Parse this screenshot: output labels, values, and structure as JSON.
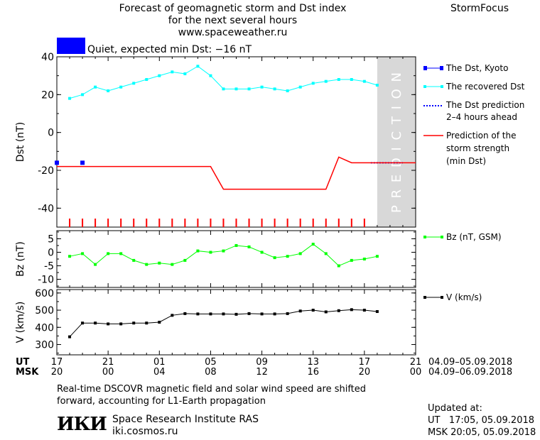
{
  "header": {
    "title_line1": "Forecast of geomagnetic storm and Dst index",
    "title_line2": "for the next several hours",
    "website": "www.spaceweather.ru",
    "brand": "StormFocus",
    "status_text": "Quiet, expected min Dst: −16 nT",
    "status_color": "#0000ff"
  },
  "prediction_label": "PREDICTION",
  "legend": {
    "dst_kyoto": "The Dst, Kyoto",
    "recovered_line1": "The recovered Dst",
    "prediction_line1": "The Dst prediction",
    "prediction_line2": "2–4 hours ahead",
    "storm_line1": "Prediction of the",
    "storm_line2": "storm strength",
    "storm_line3": "(min Dst)",
    "bz": "Bz (nT, GSM)",
    "v": "V (km/s)"
  },
  "axis": {
    "ut_label": "UT",
    "msk_label": "MSK",
    "ut_ticks": [
      "17",
      "21",
      "01",
      "05",
      "09",
      "13",
      "17",
      "21"
    ],
    "msk_ticks": [
      "20",
      "00",
      "04",
      "08",
      "12",
      "16",
      "20",
      "00"
    ],
    "ut_range": "04.09–05.09.2018",
    "msk_range": "04.09–06.09.2018"
  },
  "footer": {
    "note_line1": "Real-time DSCOVR magnetic field and solar wind speed are shifted",
    "note_line2": "forward, accounting for L1-Earth propagation",
    "institute": "Space Research Institute RAS",
    "institute_url": "iki.cosmos.ru",
    "logo": "ИКИ",
    "updated_label": "Updated at:",
    "updated_ut": "UT   17:05, 05.09.2018",
    "updated_msk": "MSK 20:05, 05.09.2018"
  },
  "colors": {
    "dst_kyoto": "#0000ff",
    "recovered": "#00ffff",
    "prediction": "#0000ff",
    "storm": "#ff0000",
    "bz": "#00ff00",
    "v": "#000000",
    "prediction_band": "#d8d8d8"
  },
  "chart_data": [
    {
      "type": "line",
      "ylabel": "Dst (nT)",
      "xlim": [
        0,
        28
      ],
      "ylim": [
        -50,
        40
      ],
      "yticks": [
        40,
        20,
        0,
        -20,
        -40
      ],
      "prediction_band": [
        25,
        28
      ],
      "series": [
        {
          "name": "The Dst, Kyoto",
          "x": [
            0,
            2
          ],
          "y": [
            -16,
            -16
          ]
        },
        {
          "name": "The recovered Dst",
          "x": [
            1,
            2,
            3,
            4,
            5,
            6,
            7,
            8,
            9,
            10,
            11,
            12,
            13,
            14,
            15,
            16,
            17,
            18,
            19,
            20,
            21,
            22,
            23,
            24,
            25
          ],
          "y": [
            18,
            20,
            24,
            22,
            24,
            26,
            28,
            30,
            32,
            31,
            35,
            30,
            23,
            23,
            23,
            24,
            23,
            22,
            24,
            26,
            27,
            28,
            28,
            27,
            25
          ]
        },
        {
          "name": "The Dst prediction 2–4 hours ahead",
          "x": [
            24.5,
            27
          ],
          "y": [
            -16,
            -16
          ]
        },
        {
          "name": "Prediction of the storm strength (min Dst)",
          "x": [
            0,
            12,
            13,
            21,
            22,
            23,
            28
          ],
          "y": [
            -18,
            -18,
            -30,
            -30,
            -13,
            -16,
            -16
          ]
        }
      ],
      "tick_marks_x": [
        1,
        2,
        3,
        4,
        5,
        6,
        7,
        8,
        9,
        10,
        11,
        12,
        13,
        14,
        15,
        16,
        17,
        18,
        19,
        20,
        21,
        22,
        23,
        24
      ]
    },
    {
      "type": "line",
      "ylabel": "Bz (nT)",
      "xlim": [
        0,
        28
      ],
      "ylim": [
        -13,
        8
      ],
      "yticks": [
        5,
        0,
        -5,
        -10
      ],
      "series": [
        {
          "name": "Bz (nT, GSM)",
          "x": [
            1,
            2,
            3,
            4,
            5,
            6,
            7,
            8,
            9,
            10,
            11,
            12,
            13,
            14,
            15,
            16,
            17,
            18,
            19,
            20,
            21,
            22,
            23,
            24,
            25
          ],
          "y": [
            -1.5,
            -0.5,
            -4.5,
            -0.5,
            -0.5,
            -3,
            -4.5,
            -4,
            -4.5,
            -3,
            0.5,
            0,
            0.5,
            2.5,
            2,
            0,
            -2,
            -1.5,
            -0.5,
            3,
            -0.5,
            -5,
            -3,
            -2.5,
            -1.5
          ]
        }
      ]
    },
    {
      "type": "line",
      "ylabel": "V (km/s)",
      "xlim": [
        0,
        28
      ],
      "ylim": [
        240,
        620
      ],
      "yticks": [
        600,
        500,
        400,
        300
      ],
      "series": [
        {
          "name": "V (km/s)",
          "x": [
            1,
            2,
            3,
            4,
            5,
            6,
            7,
            8,
            9,
            10,
            11,
            12,
            13,
            14,
            15,
            16,
            17,
            18,
            19,
            20,
            21,
            22,
            23,
            24,
            25
          ],
          "y": [
            345,
            425,
            425,
            420,
            420,
            425,
            425,
            430,
            470,
            480,
            478,
            478,
            478,
            476,
            480,
            478,
            478,
            480,
            495,
            500,
            490,
            497,
            503,
            500,
            492
          ]
        }
      ]
    }
  ]
}
